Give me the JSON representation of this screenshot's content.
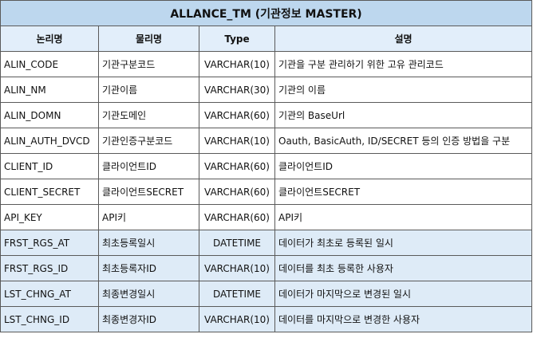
{
  "table": {
    "title": "ALLANCE_TM (기관정보 MASTER)",
    "headers": [
      "논리명",
      "물리명",
      "Type",
      "설명"
    ],
    "rows": [
      {
        "logical": "ALIN_CODE",
        "physical": "기관구분코드",
        "type": "VARCHAR(10)",
        "desc": "기관을 구분 관리하기 위한 고유 관리코드",
        "shaded": false
      },
      {
        "logical": "ALIN_NM",
        "physical": "기관이름",
        "type": "VARCHAR(30)",
        "desc": "기관의 이름",
        "shaded": false
      },
      {
        "logical": "ALIN_DOMN",
        "physical": "기관도메인",
        "type": "VARCHAR(60)",
        "desc": "기관의 BaseUrl",
        "shaded": false
      },
      {
        "logical": "ALIN_AUTH_DVCD",
        "physical": "기관인증구분코드",
        "type": "VARCHAR(10)",
        "desc": "Oauth, BasicAuth, ID/SECRET 등의 인증 방법을 구분",
        "shaded": false
      },
      {
        "logical": "CLIENT_ID",
        "physical": "클라이언트ID",
        "type": "VARCHAR(60)",
        "desc": "클라이언트ID",
        "shaded": false
      },
      {
        "logical": "CLIENT_SECRET",
        "physical": "클라이언트SECRET",
        "type": "VARCHAR(60)",
        "desc": "클라이언트SECRET",
        "shaded": false
      },
      {
        "logical": "API_KEY",
        "physical": "API키",
        "type": "VARCHAR(60)",
        "desc": "API키",
        "shaded": false
      },
      {
        "logical": "FRST_RGS_AT",
        "physical": "최초등록일시",
        "type": "DATETIME",
        "desc": "데이터가 최초로 등록된 일시",
        "shaded": true
      },
      {
        "logical": "FRST_RGS_ID",
        "physical": "최초등록자ID",
        "type": "VARCHAR(10)",
        "desc": "데이터를 최초 등록한 사용자",
        "shaded": true
      },
      {
        "logical": "LST_CHNG_AT",
        "physical": "최종변경일시",
        "type": "DATETIME",
        "desc": "데이터가 마지막으로 변경된 일시",
        "shaded": true
      },
      {
        "logical": "LST_CHNG_ID",
        "physical": "최종변경자ID",
        "type": "VARCHAR(10)",
        "desc": "데이터를 마지막으로 변경한 사용자",
        "shaded": true
      }
    ]
  }
}
